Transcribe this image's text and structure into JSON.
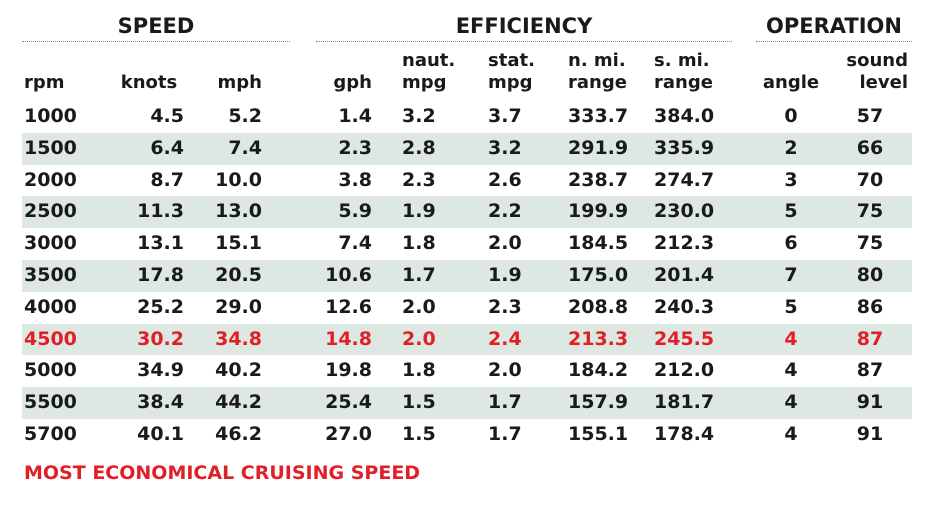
{
  "groups": {
    "speed": "SPEED",
    "efficiency": "EFFICIENCY",
    "operation": "OPERATION"
  },
  "columns": [
    {
      "key": "rpm",
      "label": "rpm"
    },
    {
      "key": "knots",
      "label": "knots"
    },
    {
      "key": "mph",
      "label": "mph"
    },
    {
      "key": "gph",
      "label": "gph"
    },
    {
      "key": "naut_mpg",
      "label": "naut.\nmpg"
    },
    {
      "key": "stat_mpg",
      "label": "stat.\nmpg"
    },
    {
      "key": "n_range",
      "label": "n. mi.\nrange"
    },
    {
      "key": "s_range",
      "label": "s. mi.\nrange"
    },
    {
      "key": "angle",
      "label": "angle"
    },
    {
      "key": "sound",
      "label": "sound\nlevel"
    }
  ],
  "rows": [
    [
      "1000",
      "4.5",
      "5.2",
      "1.4",
      "3.2",
      "3.7",
      "333.7",
      "384.0",
      "0",
      "57"
    ],
    [
      "1500",
      "6.4",
      "7.4",
      "2.3",
      "2.8",
      "3.2",
      "291.9",
      "335.9",
      "2",
      "66"
    ],
    [
      "2000",
      "8.7",
      "10.0",
      "3.8",
      "2.3",
      "2.6",
      "238.7",
      "274.7",
      "3",
      "70"
    ],
    [
      "2500",
      "11.3",
      "13.0",
      "5.9",
      "1.9",
      "2.2",
      "199.9",
      "230.0",
      "5",
      "75"
    ],
    [
      "3000",
      "13.1",
      "15.1",
      "7.4",
      "1.8",
      "2.0",
      "184.5",
      "212.3",
      "6",
      "75"
    ],
    [
      "3500",
      "17.8",
      "20.5",
      "10.6",
      "1.7",
      "1.9",
      "175.0",
      "201.4",
      "7",
      "80"
    ],
    [
      "4000",
      "25.2",
      "29.0",
      "12.6",
      "2.0",
      "2.3",
      "208.8",
      "240.3",
      "5",
      "86"
    ],
    [
      "4500",
      "30.2",
      "34.8",
      "14.8",
      "2.0",
      "2.4",
      "213.3",
      "245.5",
      "4",
      "87"
    ],
    [
      "5000",
      "34.9",
      "40.2",
      "19.8",
      "1.8",
      "2.0",
      "184.2",
      "212.0",
      "4",
      "87"
    ],
    [
      "5500",
      "38.4",
      "44.2",
      "25.4",
      "1.5",
      "1.7",
      "157.9",
      "181.7",
      "4",
      "91"
    ],
    [
      "5700",
      "40.1",
      "46.2",
      "27.0",
      "1.5",
      "1.7",
      "155.1",
      "178.4",
      "4",
      "91"
    ]
  ],
  "highlight_row_index": 7,
  "highlight_color": "#e01f26",
  "shade_color": "#dde8e3",
  "note": "MOST ECONOMICAL CRUISING SPEED"
}
